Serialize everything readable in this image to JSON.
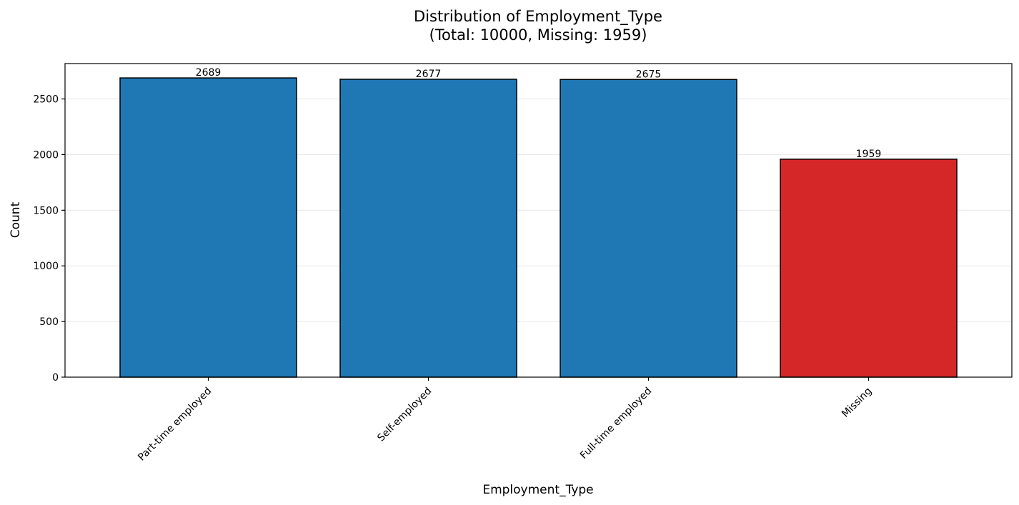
{
  "chart_data": {
    "type": "bar",
    "title": "Distribution of Employment_Type",
    "subtitle": "(Total: 10000, Missing: 1959)",
    "xlabel": "Employment_Type",
    "ylabel": "Count",
    "categories": [
      "Part-time employed",
      "Self-employed",
      "Full-time employed",
      "Missing"
    ],
    "values": [
      2689,
      2677,
      2675,
      1959
    ],
    "bar_colors": [
      "#1f77b4",
      "#1f77b4",
      "#1f77b4",
      "#d62728"
    ],
    "ylim": [
      0,
      2818
    ],
    "yticks": [
      0,
      500,
      1000,
      1500,
      2000,
      2500
    ],
    "grid": "y-axis",
    "legend": "none"
  }
}
